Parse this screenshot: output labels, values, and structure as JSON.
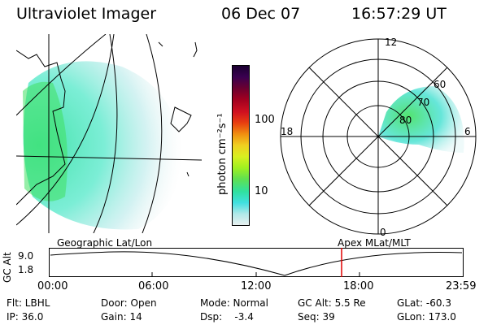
{
  "header": {
    "instrument": "Ultraviolet Imager",
    "date": "06 Dec 07",
    "time": "16:57:29 UT"
  },
  "colorbar": {
    "label": "photon cm⁻²s⁻¹",
    "ticks": [
      "100",
      "10"
    ],
    "colors": [
      "#1a0030",
      "#3a0050",
      "#6a0030",
      "#a00020",
      "#d01020",
      "#e84010",
      "#f09010",
      "#f0d020",
      "#d8f020",
      "#a0f020",
      "#60e050",
      "#30e0a0",
      "#40e0e0",
      "#b0e8e8",
      "#e8f0f0"
    ]
  },
  "polar_plot": {
    "labels": {
      "top": "12",
      "bottom": "0",
      "left": "18",
      "right": "6",
      "lat60": "60",
      "lat70": "70",
      "lat80": "80"
    }
  },
  "timeline": {
    "ylabel": "GC Alt",
    "yticks": [
      "9.0",
      "1.8"
    ],
    "left_title": "Geographic Lat/Lon",
    "right_title": "Apex MLat/MLT",
    "xticks": [
      "00:00",
      "06:00",
      "12:00",
      "18:00",
      "23:59"
    ],
    "marker_color": "#e00000"
  },
  "status": {
    "flt": "Flt: LBHL",
    "ip": "IP: 36.0",
    "door": "Door: Open",
    "gain": "Gain: 14",
    "mode": "Mode: Normal",
    "dsp": "Dsp:    -3.4",
    "gc_alt": "GC Alt: 5.5 Re",
    "seq": "Seq: 39",
    "glat": "GLat: -60.3",
    "glon": "GLon: 173.0"
  }
}
